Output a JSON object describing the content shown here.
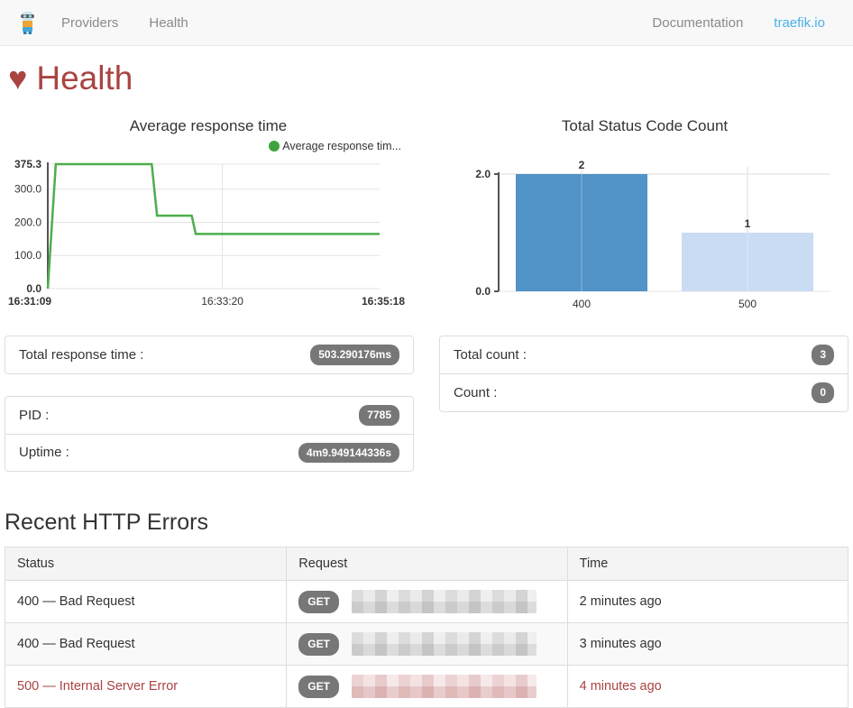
{
  "navbar": {
    "logo_icon": "traefik-mascot-icon",
    "items": [
      {
        "label": "Providers"
      },
      {
        "label": "Health"
      }
    ],
    "right_items": [
      {
        "label": "Documentation"
      },
      {
        "label": "traefik.io"
      }
    ]
  },
  "page": {
    "title": "Health",
    "heart_icon": "heart-icon"
  },
  "colors": {
    "accent_link": "#49b2e8",
    "title": "#a94442",
    "danger_text": "#a94442",
    "badge_bg": "#777777",
    "line_green": "#4cae4c",
    "legend_dot_green": "#3fa43f",
    "bar_blue": "#5193c6",
    "bar_light_blue": "#cadcf3",
    "navbar_bg": "#f8f8f8"
  },
  "chart_data": [
    {
      "type": "line",
      "title": "Average response time",
      "legend": "Average response tim...",
      "line_color": "#4cae4c",
      "x_range": [
        0,
        249
      ],
      "x_ticks": [
        {
          "t": 0,
          "label": "16:31:09",
          "bold": true,
          "grid": false
        },
        {
          "t": 131,
          "label": "16:33:20",
          "bold": false,
          "grid": true
        },
        {
          "t": 249,
          "label": "16:35:18",
          "bold": true,
          "grid": false
        }
      ],
      "y_max": 375.3,
      "y_ticks": [
        {
          "v": 0,
          "label": "0.0",
          "bold": true
        },
        {
          "v": 100,
          "label": "100.0",
          "bold": false
        },
        {
          "v": 200,
          "label": "200.0",
          "bold": false
        },
        {
          "v": 300,
          "label": "300.0",
          "bold": false
        },
        {
          "v": 375.3,
          "label": "375.3",
          "bold": true
        }
      ],
      "points": [
        [
          0,
          0
        ],
        [
          6,
          375.3
        ],
        [
          78,
          375.3
        ],
        [
          82,
          220
        ],
        [
          108,
          220
        ],
        [
          111,
          165
        ],
        [
          249,
          165
        ]
      ]
    },
    {
      "type": "bar",
      "title": "Total Status Code Count",
      "categories": [
        "400",
        "500"
      ],
      "values": [
        2,
        1
      ],
      "value_labels": [
        "2",
        "1"
      ],
      "bar_colors": [
        "#5193c6",
        "#cadcf3"
      ],
      "y_max": 2,
      "y_ticks": [
        {
          "v": 0,
          "label": "0.0",
          "bold": true
        },
        {
          "v": 2,
          "label": "2.0",
          "bold": true
        }
      ]
    }
  ],
  "stats": {
    "total_response_time": {
      "label": "Total response time :",
      "value": "503.290176ms"
    },
    "pid": {
      "label": "PID :",
      "value": "7785"
    },
    "uptime": {
      "label": "Uptime :",
      "value": "4m9.949144336s"
    },
    "total_count": {
      "label": "Total count :",
      "value": "3"
    },
    "count": {
      "label": "Count :",
      "value": "0"
    }
  },
  "errors": {
    "title": "Recent HTTP Errors",
    "table": {
      "headers": [
        "Status",
        "Request",
        "Time"
      ],
      "rows": [
        {
          "status": "400 — Bad Request",
          "method": "GET",
          "request_redacted": true,
          "time": "2 minutes ago",
          "severity": "normal"
        },
        {
          "status": "400 — Bad Request",
          "method": "GET",
          "request_redacted": true,
          "time": "3 minutes ago",
          "severity": "normal"
        },
        {
          "status": "500 — Internal Server Error",
          "method": "GET",
          "request_redacted": true,
          "time": "4 minutes ago",
          "severity": "danger"
        }
      ]
    }
  }
}
